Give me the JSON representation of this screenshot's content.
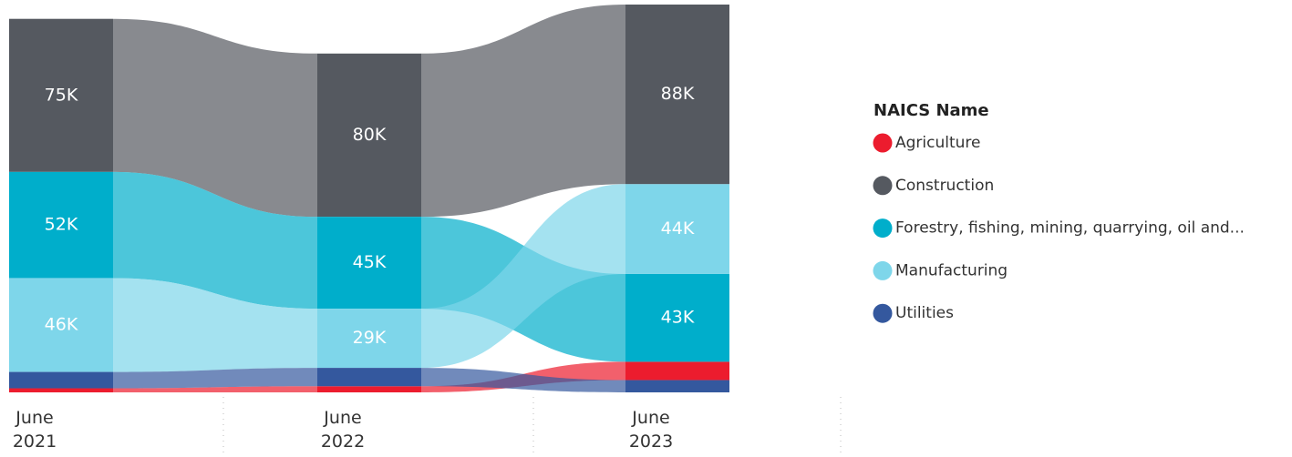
{
  "chart_data": {
    "type": "ribbon",
    "categories": [
      "June 2021",
      "June 2022",
      "June 2023"
    ],
    "legend_title": "NAICS Name",
    "series": [
      {
        "name": "Agriculture",
        "color": "#ec1c2e",
        "values": [
          2000,
          3000,
          9000
        ],
        "value_labels": [
          null,
          null,
          null
        ]
      },
      {
        "name": "Construction",
        "color": "#555960",
        "values": [
          75000,
          80000,
          88000
        ],
        "value_labels": [
          "75K",
          "80K",
          "88K"
        ]
      },
      {
        "name": "Forestry, fishing, mining, quarrying, oil and...",
        "color": "#00aecb",
        "values": [
          52000,
          45000,
          43000
        ],
        "value_labels": [
          "52K",
          "45K",
          "43K"
        ]
      },
      {
        "name": "Manufacturing",
        "color": "#7ed6ea",
        "values": [
          46000,
          29000,
          44000
        ],
        "value_labels": [
          "46K",
          "29K",
          "44K"
        ]
      },
      {
        "name": "Utilities",
        "color": "#34589e",
        "values": [
          8000,
          9000,
          6000
        ],
        "value_labels": [
          null,
          null,
          null
        ]
      }
    ]
  }
}
